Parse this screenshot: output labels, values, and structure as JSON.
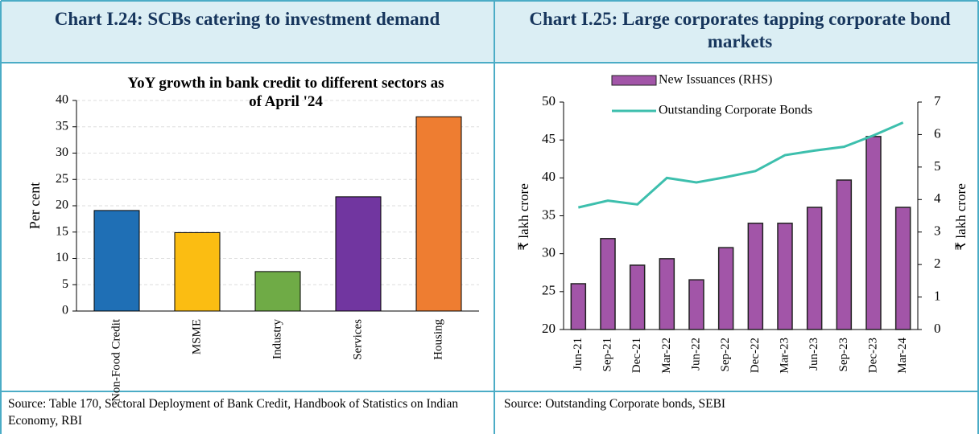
{
  "panels": [
    {
      "title": "Chart I.24: SCBs catering to investment demand",
      "source": "Source: Table 170, Sectoral Deployment of Bank Credit, Handbook of Statistics on Indian Economy, RBI"
    },
    {
      "title": "Chart I.25: Large corporates tapping corporate bond markets",
      "source": "Source: Outstanding Corporate bonds, SEBI"
    }
  ],
  "chart_data": [
    {
      "type": "bar",
      "subtitle": "YoY growth in bank credit to different sectors as of April '24",
      "ylabel": "Per cent",
      "categories": [
        "Non-Food Credit",
        "MSME",
        "Industry",
        "Services",
        "Housing"
      ],
      "values": [
        19.1,
        14.9,
        7.5,
        21.7,
        36.9
      ],
      "colors": [
        "#1f6fb5",
        "#fbbd12",
        "#6fab46",
        "#7136a0",
        "#ee7d31"
      ],
      "ylim": [
        0,
        40
      ],
      "yticks": [
        0,
        5,
        10,
        15,
        20,
        25,
        30,
        35,
        40
      ],
      "grid": true
    },
    {
      "type": "combo",
      "ylabel": "₹ lakh crore",
      "y2label": "₹ lakh crore",
      "categories": [
        "Jun-21",
        "Sep-21",
        "Dec-21",
        "Mar-22",
        "Jun-22",
        "Sep-22",
        "Dec-22",
        "Mar-23",
        "Jun-23",
        "Sep-23",
        "Dec-23",
        "Mar-24"
      ],
      "series": [
        {
          "name": "New Issuances (RHS)",
          "type": "bar",
          "axis": "y2",
          "color": "#a255a8",
          "values": [
            1.41,
            2.8,
            1.98,
            2.18,
            1.53,
            2.52,
            3.27,
            3.27,
            3.76,
            4.6,
            5.94,
            3.76
          ]
        },
        {
          "name": "Outstanding Corporate Bonds",
          "type": "line",
          "color": "#3dbfad",
          "values": [
            36.1,
            37.0,
            36.5,
            40.0,
            39.4,
            40.1,
            40.9,
            43.0,
            43.6,
            44.1,
            45.6,
            47.3
          ]
        }
      ],
      "ylim": [
        20,
        50
      ],
      "yticks": [
        20,
        25,
        30,
        35,
        40,
        45,
        50
      ],
      "y2lim": [
        0,
        7
      ],
      "y2ticks": [
        0,
        1,
        2,
        3,
        4,
        5,
        6,
        7
      ],
      "grid": false
    }
  ]
}
